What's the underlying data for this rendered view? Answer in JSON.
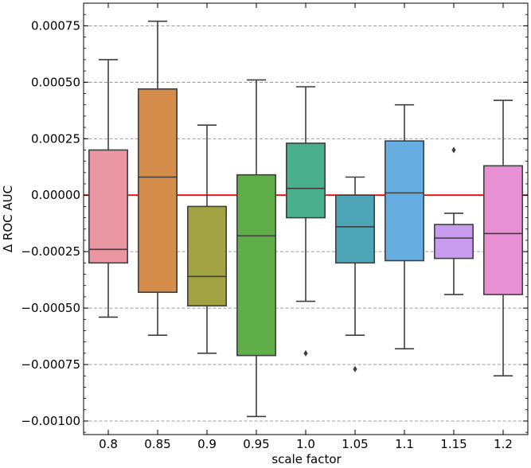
{
  "chart_data": {
    "type": "box",
    "xlabel": "scale factor",
    "ylabel": "Δ ROC AUC",
    "ylim": [
      -0.00106,
      0.00085
    ],
    "yticks": [
      -0.001,
      -0.00075,
      -0.0005,
      -0.00025,
      0.0,
      0.00025,
      0.0005,
      0.00075
    ],
    "ytick_labels": [
      "−0.00100",
      "−0.00075",
      "−0.00050",
      "−0.00025",
      "0.00000",
      "0.00025",
      "0.00050",
      "0.00075"
    ],
    "grid": "horizontal dashed",
    "reference_line": {
      "y": 0.0,
      "color": "#ff0000"
    },
    "categories": [
      "0.8",
      "0.85",
      "0.9",
      "0.95",
      "1.0",
      "1.05",
      "1.1",
      "1.15",
      "1.2"
    ],
    "boxes": [
      {
        "whisker_low": -0.00054,
        "q1": -0.0003,
        "median": -0.00024,
        "q3": 0.0002,
        "whisker_high": 0.0006,
        "outliers": [],
        "color": "#ea96a3"
      },
      {
        "whisker_low": -0.00062,
        "q1": -0.00043,
        "median": 8e-05,
        "q3": 0.00047,
        "whisker_high": 0.00077,
        "outliers": [],
        "color": "#d48c4a"
      },
      {
        "whisker_low": -0.0007,
        "q1": -0.00049,
        "median": -0.00036,
        "q3": -5e-05,
        "whisker_high": 0.00031,
        "outliers": [],
        "color": "#a2a343"
      },
      {
        "whisker_low": -0.00098,
        "q1": -0.00071,
        "median": -0.00018,
        "q3": 9e-05,
        "whisker_high": 0.00051,
        "outliers": [],
        "color": "#5fae47"
      },
      {
        "whisker_low": -0.00047,
        "q1": -0.0001,
        "median": 3e-05,
        "q3": 0.00023,
        "whisker_high": 0.00048,
        "outliers": [
          -0.0007
        ],
        "color": "#4aaf8c"
      },
      {
        "whisker_low": -0.00062,
        "q1": -0.0003,
        "median": -0.00014,
        "q3": 0.0,
        "whisker_high": 8e-05,
        "outliers": [
          -0.00077
        ],
        "color": "#4ea5b6"
      },
      {
        "whisker_low": -0.00068,
        "q1": -0.00029,
        "median": 1e-05,
        "q3": 0.00024,
        "whisker_high": 0.0004,
        "outliers": [],
        "color": "#66ade2"
      },
      {
        "whisker_low": -0.00044,
        "q1": -0.00028,
        "median": -0.00019,
        "q3": -0.00013,
        "whisker_high": -8e-05,
        "outliers": [
          0.0002
        ],
        "color": "#c79cef"
      },
      {
        "whisker_low": -0.0008,
        "q1": -0.00044,
        "median": -0.00017,
        "q3": 0.00013,
        "whisker_high": 0.00042,
        "outliers": [],
        "color": "#e890d4"
      }
    ]
  }
}
